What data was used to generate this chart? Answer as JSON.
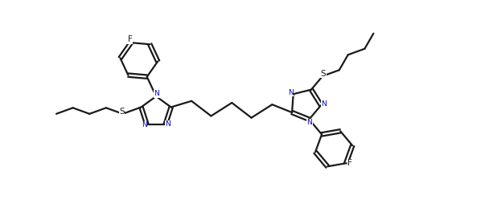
{
  "line_color": "#1a1a1a",
  "bg_color": "#ffffff",
  "text_color": "#000000",
  "N_color": "#0000bb",
  "lw": 1.6,
  "figsize": [
    6.03,
    2.79
  ],
  "dpi": 100,
  "xlim": [
    0,
    120
  ],
  "ylim": [
    0,
    56
  ]
}
